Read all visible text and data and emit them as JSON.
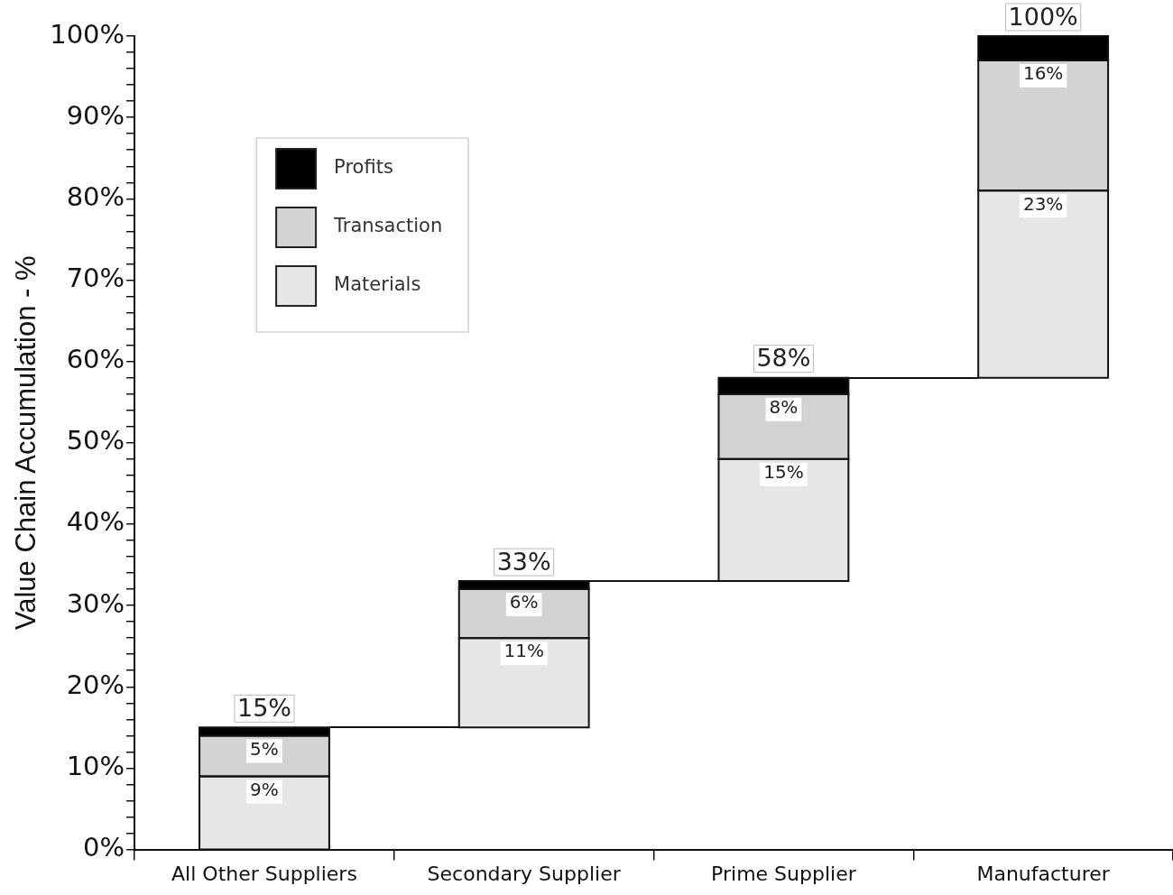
{
  "chart_data": {
    "type": "bar",
    "ylabel": "Value Chain Accumulation - %",
    "categories": [
      "All Other Suppliers",
      "Secondary Supplier",
      "Prime Supplier",
      "Manufacturer"
    ],
    "series": [
      {
        "name": "Materials",
        "color": "#e6e6e6",
        "base": [
          0,
          15,
          33,
          58
        ],
        "values": [
          9,
          11,
          15,
          23
        ],
        "value_labels": [
          "9%",
          "11%",
          "15%",
          "23%"
        ]
      },
      {
        "name": "Transaction",
        "color": "#d3d3d3",
        "base": [
          9,
          26,
          48,
          81
        ],
        "values": [
          5,
          6,
          8,
          16
        ],
        "value_labels": [
          "5%",
          "6%",
          "8%",
          "16%"
        ]
      },
      {
        "name": "Profits",
        "color": "#000000",
        "base": [
          14,
          32,
          56,
          97
        ],
        "values": [
          1,
          1,
          2,
          3
        ],
        "value_labels": [
          null,
          null,
          null,
          null
        ]
      }
    ],
    "annotations": [
      {
        "text": "15%",
        "x": "All Other Suppliers",
        "y": 15
      },
      {
        "text": "33%",
        "x": "Secondary Supplier",
        "y": 33
      },
      {
        "text": "58%",
        "x": "Prime Supplier",
        "y": 58
      },
      {
        "text": "100%",
        "x": "Manufacturer",
        "y": 100
      }
    ],
    "ylim": [
      0,
      100
    ],
    "yticks": [
      {
        "value": 0,
        "label": "0%"
      },
      {
        "value": 2,
        "label": null
      },
      {
        "value": 4,
        "label": null
      },
      {
        "value": 6,
        "label": null
      },
      {
        "value": 8,
        "label": null
      },
      {
        "value": 10,
        "label": "10%"
      },
      {
        "value": 12,
        "label": null
      },
      {
        "value": 14,
        "label": null
      },
      {
        "value": 16,
        "label": null
      },
      {
        "value": 18,
        "label": null
      },
      {
        "value": 20,
        "label": "20%"
      },
      {
        "value": 22,
        "label": null
      },
      {
        "value": 24,
        "label": null
      },
      {
        "value": 26,
        "label": null
      },
      {
        "value": 28,
        "label": null
      },
      {
        "value": 30,
        "label": "30%"
      },
      {
        "value": 32,
        "label": null
      },
      {
        "value": 34,
        "label": null
      },
      {
        "value": 36,
        "label": null
      },
      {
        "value": 38,
        "label": null
      },
      {
        "value": 40,
        "label": "40%"
      },
      {
        "value": 42,
        "label": null
      },
      {
        "value": 44,
        "label": null
      },
      {
        "value": 46,
        "label": null
      },
      {
        "value": 48,
        "label": null
      },
      {
        "value": 50,
        "label": "50%"
      },
      {
        "value": 52,
        "label": null
      },
      {
        "value": 54,
        "label": null
      },
      {
        "value": 56,
        "label": null
      },
      {
        "value": 58,
        "label": null
      },
      {
        "value": 60,
        "label": "60%"
      },
      {
        "value": 62,
        "label": null
      },
      {
        "value": 64,
        "label": null
      },
      {
        "value": 66,
        "label": null
      },
      {
        "value": 68,
        "label": null
      },
      {
        "value": 70,
        "label": "70%"
      },
      {
        "value": 72,
        "label": null
      },
      {
        "value": 74,
        "label": null
      },
      {
        "value": 76,
        "label": null
      },
      {
        "value": 78,
        "label": null
      },
      {
        "value": 80,
        "label": "80%"
      },
      {
        "value": 82,
        "label": null
      },
      {
        "value": 84,
        "label": null
      },
      {
        "value": 86,
        "label": null
      },
      {
        "value": 88,
        "label": null
      },
      {
        "value": 90,
        "label": "90%"
      },
      {
        "value": 92,
        "label": null
      },
      {
        "value": 94,
        "label": null
      },
      {
        "value": 96,
        "label": null
      },
      {
        "value": 98,
        "label": null
      },
      {
        "value": 100,
        "label": "100%"
      }
    ],
    "grid": false,
    "legend": "top left"
  }
}
